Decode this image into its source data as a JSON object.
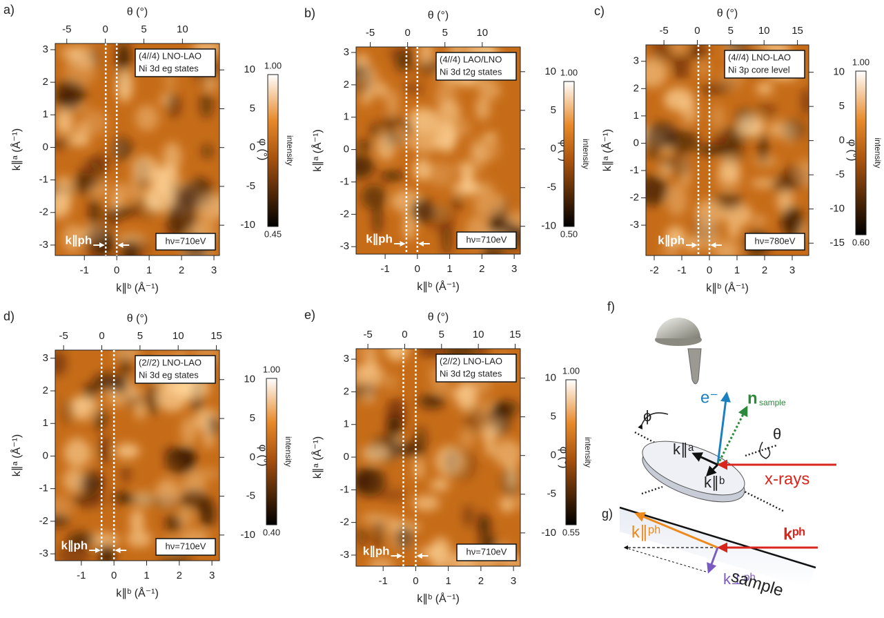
{
  "chart_data": [
    {
      "type": "heatmap",
      "panel": "a)",
      "xlabel": "k∥ᵇ (Å⁻¹)",
      "ylabel": "k∥ᵃ (Å⁻¹)",
      "x2label": "θ (°)",
      "y2label": "φ (°)",
      "xlim": [
        -1.9,
        3.17
      ],
      "xticks": [
        -1,
        0,
        1,
        2,
        3
      ],
      "ylim": [
        -3.32,
        3.19
      ],
      "yticks": [
        -3,
        -2,
        -1,
        0,
        1,
        2,
        3
      ],
      "x2lim": [
        -6.5,
        14.8
      ],
      "x2ticks": [
        -5,
        0,
        5,
        10
      ],
      "y2lim": [
        -13.9,
        13.4
      ],
      "y2ticks": [
        -10,
        -5,
        0,
        5,
        10
      ],
      "colorbar": {
        "label": "intensity",
        "clim": [
          0.45,
          1
        ],
        "ticks": [
          {
            "value": 0.45,
            "label": "0.45"
          },
          {
            "value": 1,
            "label": "1.00"
          }
        ]
      },
      "sample_lines": [
        "(4//4) LNO-LAO",
        "Ni 3d eg states"
      ],
      "photon_energy": "hν=710eV",
      "kph_label": "k∥ph",
      "kph_lines": [
        -0.34,
        0
      ]
    },
    {
      "type": "heatmap",
      "panel": "b)",
      "xlabel": "k∥ᵇ (Å⁻¹)",
      "ylabel": "k∥ᵃ (Å⁻¹)",
      "x2label": "θ (°)",
      "y2label": "φ (°)",
      "xlim": [
        -1.9,
        3.19
      ],
      "xticks": [
        -1,
        0,
        1,
        2,
        3
      ],
      "ylim": [
        -3.23,
        3.17
      ],
      "yticks": [
        -3,
        -2,
        -1,
        0,
        1,
        2,
        3
      ],
      "x2lim": [
        -6.9,
        15.1
      ],
      "x2ticks": [
        -5,
        0,
        5,
        10
      ],
      "y2lim": [
        -13.6,
        13.2
      ],
      "y2ticks": [
        -10,
        -5,
        0,
        5,
        10
      ],
      "colorbar": {
        "label": "intensity",
        "clim": [
          0.5,
          1
        ],
        "ticks": [
          {
            "value": 0.5,
            "label": "0.50"
          },
          {
            "value": 1,
            "label": "1.00"
          }
        ]
      },
      "sample_lines": [
        "(4//4) LAO/LNO",
        "Ni 3d t2g states"
      ],
      "photon_energy": "hν=710eV",
      "kph_label": "k∥ph",
      "kph_lines": [
        -0.34,
        0
      ]
    },
    {
      "type": "heatmap",
      "panel": "c)",
      "xlabel": "k∥ᵇ (Å⁻¹)",
      "ylabel": "k∥ᵃ (Å⁻¹)",
      "x2label": "θ (°)",
      "y2label": "φ (°)",
      "xlim": [
        -2.3,
        3.6
      ],
      "xticks": [
        -2,
        -1,
        0,
        1,
        2,
        3
      ],
      "ylim": [
        -4.11,
        3.6
      ],
      "yticks": [
        -3,
        -2,
        -1,
        0,
        1,
        2,
        3
      ],
      "x2lim": [
        -7.7,
        16.7
      ],
      "x2ticks": [
        -5,
        0,
        5,
        10,
        15
      ],
      "y2lim": [
        -16.8,
        14
      ],
      "y2ticks": [
        -15,
        -10,
        -5,
        0,
        5,
        10
      ],
      "colorbar": {
        "label": "intensity",
        "clim": [
          0.6,
          1
        ],
        "ticks": [
          {
            "value": 0.6,
            "label": "0.60"
          },
          {
            "value": 1,
            "label": "1.00"
          }
        ]
      },
      "sample_lines": [
        "(4//4) LNO-LAO",
        "Ni 3p core level"
      ],
      "photon_energy": "hν=780eV",
      "kph_label": "k∥ph",
      "kph_lines": [
        -0.4,
        0
      ]
    },
    {
      "type": "heatmap",
      "panel": "d)",
      "xlabel": "k∥ᵇ (Å⁻¹)",
      "ylabel": "k∥ᵃ (Å⁻¹)",
      "x2label": "θ (°)",
      "y2label": "φ (°)",
      "xlim": [
        -1.8,
        3.23
      ],
      "xticks": [
        -1,
        0,
        1,
        2,
        3
      ],
      "ylim": [
        -3.21,
        3.25
      ],
      "yticks": [
        -3,
        -2,
        -1,
        0,
        1,
        2,
        3
      ],
      "x2lim": [
        -6.1,
        15.4
      ],
      "x2ticks": [
        -5,
        0,
        5,
        10,
        15
      ],
      "y2lim": [
        -13.3,
        13.8
      ],
      "y2ticks": [
        -10,
        -5,
        0,
        5,
        10
      ],
      "colorbar": {
        "label": "intensity",
        "clim": [
          0.4,
          1
        ],
        "ticks": [
          {
            "value": 0.4,
            "label": "0.40"
          },
          {
            "value": 1,
            "label": "1.00"
          }
        ]
      },
      "sample_lines": [
        "(2//2) LNO-LAO",
        "Ni 3d eg states"
      ],
      "photon_energy": "hν=710eV",
      "kph_label": "k∥ph",
      "kph_lines": [
        -0.38,
        0
      ]
    },
    {
      "type": "heatmap",
      "panel": "e)",
      "xlabel": "k∥ᵇ (Å⁻¹)",
      "ylabel": "k∥ᵃ (Å⁻¹)",
      "x2label": "θ (°)",
      "y2label": "φ (°)",
      "xlim": [
        -1.83,
        3.21
      ],
      "xticks": [
        -1,
        0,
        1,
        2,
        3
      ],
      "ylim": [
        -3.34,
        3.32
      ],
      "yticks": [
        -3,
        -2,
        -1,
        0,
        1,
        2,
        3
      ],
      "x2lim": [
        -6.6,
        15.7
      ],
      "x2ticks": [
        -5,
        0,
        5,
        10,
        15
      ],
      "y2lim": [
        -14.3,
        13.8
      ],
      "y2ticks": [
        -10,
        -5,
        0,
        5,
        10
      ],
      "colorbar": {
        "label": "intensity",
        "clim": [
          0.55,
          1
        ],
        "ticks": [
          {
            "value": 0.55,
            "label": "0.55"
          },
          {
            "value": 1,
            "label": "1.00"
          }
        ]
      },
      "sample_lines": [
        "(2//2) LNO-LAO",
        "Ni 3d t2g states"
      ],
      "photon_energy": "hν=710eV",
      "kph_label": "k∥ph",
      "kph_lines": [
        -0.38,
        0
      ]
    }
  ],
  "diagram": {
    "panel_f": "f)",
    "panel_g": "g)",
    "electron": "e⁻",
    "normal": "n",
    "normal_sub": "sample",
    "phi": "ϕ",
    "theta": "θ",
    "k_a": "k∥ᵃ",
    "k_b": "k∥ᵇ",
    "xrays": "x-rays",
    "k_ph": "kᵖʰ",
    "k_par": "k∥ᵖʰ",
    "k_perp": "k⊥ᵖʰ",
    "sample": "sample"
  }
}
